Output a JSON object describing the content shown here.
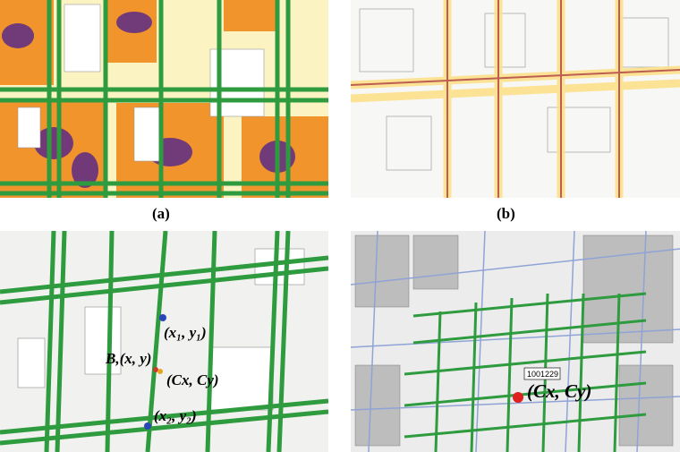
{
  "captions": {
    "a": "(a)",
    "b": "(b)"
  },
  "panel_c": {
    "label_p1": "(x₁, y₁)",
    "label_b": "B,(x, y)",
    "label_center": "(Cx, Cy)",
    "label_p2": "(x₂, y₂)"
  },
  "panel_d": {
    "parcel_id": "1001229",
    "label_center": "(Cx, Cy)"
  },
  "colors": {
    "sidewalk_green": "#2e9b3e",
    "heat_yellow": "#fbf3c2",
    "heat_orange": "#f08a1c",
    "heat_purple": "#5b2a86",
    "endpoint_blue": "#2a45b8",
    "center_red": "#e0201e"
  }
}
